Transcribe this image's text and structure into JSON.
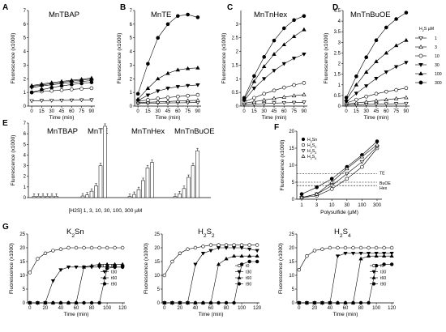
{
  "chart_data": [
    {
      "id": "A",
      "type": "line",
      "title": "MnTBAP",
      "xlabel": "Time (min)",
      "ylabel": "Fluorescence (x1000)",
      "x": [
        0,
        15,
        30,
        45,
        60,
        75,
        90
      ],
      "xticks": [
        0,
        15,
        30,
        45,
        60,
        75,
        90
      ],
      "ylim": [
        0,
        7
      ],
      "yticks": [
        0,
        1,
        2,
        3,
        4,
        5,
        6,
        7
      ],
      "series": [
        {
          "name": "1",
          "marker": "tri-down-open",
          "values": [
            0.38,
            0.4,
            0.41,
            0.42,
            0.43,
            0.44,
            0.45
          ]
        },
        {
          "name": "3",
          "marker": "tri-up-open",
          "values": [
            1.45,
            1.55,
            1.65,
            1.75,
            1.83,
            1.9,
            1.98
          ]
        },
        {
          "name": "10",
          "marker": "circle-open",
          "values": [
            1.0,
            1.07,
            1.12,
            1.17,
            1.22,
            1.27,
            1.31
          ]
        },
        {
          "name": "30",
          "marker": "tri-down",
          "values": [
            1.35,
            1.47,
            1.56,
            1.65,
            1.73,
            1.8,
            1.87
          ]
        },
        {
          "name": "100",
          "marker": "tri-up",
          "values": [
            1.5,
            1.62,
            1.72,
            1.81,
            1.89,
            1.97,
            2.05
          ]
        },
        {
          "name": "300",
          "marker": "circle",
          "values": [
            1.0,
            1.2,
            1.35,
            1.48,
            1.58,
            1.66,
            1.74
          ]
        }
      ]
    },
    {
      "id": "B",
      "type": "line",
      "title": "MnTE",
      "xlabel": "Time (min)",
      "ylabel": "Fluorescence (x1000)",
      "x": [
        0,
        15,
        30,
        45,
        60,
        75,
        90
      ],
      "xticks": [
        0,
        15,
        30,
        45,
        60,
        75,
        90
      ],
      "ylim": [
        0,
        7
      ],
      "yticks": [
        0,
        1,
        2,
        3,
        4,
        5,
        6,
        7
      ],
      "series": [
        {
          "name": "1",
          "marker": "tri-down-open",
          "values": [
            0.2,
            0.21,
            0.22,
            0.23,
            0.24,
            0.25,
            0.26
          ]
        },
        {
          "name": "3",
          "marker": "tri-up-open",
          "values": [
            0.25,
            0.28,
            0.31,
            0.34,
            0.37,
            0.4,
            0.42
          ]
        },
        {
          "name": "10",
          "marker": "circle-open",
          "values": [
            0.35,
            0.45,
            0.55,
            0.62,
            0.7,
            0.76,
            0.82
          ]
        },
        {
          "name": "30",
          "marker": "tri-down",
          "values": [
            0.4,
            0.8,
            1.1,
            1.3,
            1.42,
            1.5,
            1.55
          ]
        },
        {
          "name": "100",
          "marker": "tri-up",
          "values": [
            0.5,
            1.3,
            2.0,
            2.4,
            2.65,
            2.75,
            2.8
          ]
        },
        {
          "name": "300",
          "marker": "circle",
          "values": [
            0.9,
            3.1,
            5.0,
            6.0,
            6.6,
            6.7,
            6.5
          ]
        }
      ]
    },
    {
      "id": "C",
      "type": "line",
      "title": "MnTnHex",
      "xlabel": "Time (min)",
      "ylabel": "Fluorescence (x1000)",
      "x": [
        0,
        15,
        30,
        45,
        60,
        75,
        90
      ],
      "xticks": [
        0,
        15,
        30,
        45,
        60,
        75,
        90
      ],
      "ylim": [
        0,
        3.5
      ],
      "yticks": [
        0,
        0.5,
        1,
        1.5,
        2,
        2.5,
        3
      ],
      "series": [
        {
          "name": "1",
          "marker": "tri-down-open",
          "values": [
            0.05,
            0.07,
            0.09,
            0.11,
            0.12,
            0.13,
            0.14
          ]
        },
        {
          "name": "3",
          "marker": "tri-up-open",
          "values": [
            0.1,
            0.16,
            0.22,
            0.28,
            0.33,
            0.38,
            0.42
          ]
        },
        {
          "name": "10",
          "marker": "circle-open",
          "values": [
            0.15,
            0.3,
            0.45,
            0.57,
            0.68,
            0.77,
            0.85
          ]
        },
        {
          "name": "30",
          "marker": "tri-down",
          "values": [
            0.2,
            0.65,
            1.0,
            1.3,
            1.55,
            1.75,
            1.9
          ]
        },
        {
          "name": "100",
          "marker": "tri-up",
          "values": [
            0.25,
            0.9,
            1.45,
            1.9,
            2.25,
            2.55,
            2.8
          ]
        },
        {
          "name": "300",
          "marker": "circle",
          "values": [
            0.3,
            1.1,
            1.8,
            2.4,
            2.85,
            3.15,
            3.3
          ]
        }
      ]
    },
    {
      "id": "D",
      "type": "line",
      "title": "MnTnBuOE",
      "xlabel": "Time (min)",
      "ylabel": "Fluorescence (x1000)",
      "x": [
        0,
        15,
        30,
        45,
        60,
        75,
        90
      ],
      "xticks": [
        0,
        15,
        30,
        45,
        60,
        75,
        90
      ],
      "ylim": [
        0,
        4.5
      ],
      "yticks": [
        0,
        0.5,
        1,
        1.5,
        2,
        2.5,
        3,
        3.5,
        4,
        4.5
      ],
      "legend_title": "H2S µM",
      "series": [
        {
          "name": "1",
          "marker": "tri-down-open",
          "values": [
            0.05,
            0.06,
            0.08,
            0.09,
            0.1,
            0.11,
            0.12
          ]
        },
        {
          "name": "3",
          "marker": "tri-up-open",
          "values": [
            0.1,
            0.15,
            0.2,
            0.25,
            0.3,
            0.35,
            0.4
          ]
        },
        {
          "name": "10",
          "marker": "circle-open",
          "values": [
            0.15,
            0.3,
            0.45,
            0.58,
            0.68,
            0.76,
            0.85
          ]
        },
        {
          "name": "30",
          "marker": "tri-down",
          "values": [
            0.2,
            0.6,
            0.95,
            1.3,
            1.6,
            1.85,
            2.05
          ]
        },
        {
          "name": "100",
          "marker": "tri-up",
          "values": [
            0.3,
            1.0,
            1.6,
            2.1,
            2.5,
            2.85,
            3.1
          ]
        },
        {
          "name": "300",
          "marker": "circle",
          "values": [
            0.4,
            1.4,
            2.3,
            3.1,
            3.7,
            4.1,
            4.4
          ]
        }
      ]
    },
    {
      "id": "E",
      "type": "bar",
      "ylabel": "Fluorescence (x1000)",
      "ylim": [
        0,
        7
      ],
      "yticks": [
        0,
        1,
        2,
        3,
        4,
        5,
        6,
        7
      ],
      "xlabel": "[H2S] 1, 3, 10, 30, 100, 300 µM",
      "groups": [
        {
          "name": "MnTBAP",
          "values": [
            0.12,
            0.13,
            0.14,
            0.13,
            0.14,
            0.12
          ]
        },
        {
          "name": "MnTE",
          "values": [
            0.15,
            0.25,
            0.6,
            1.1,
            3.0,
            6.7
          ]
        },
        {
          "name": "MnTnHex",
          "values": [
            0.1,
            0.3,
            0.75,
            1.6,
            2.8,
            3.3
          ]
        },
        {
          "name": "MnTnBuOE",
          "values": [
            0.1,
            0.35,
            0.85,
            1.9,
            3.0,
            4.4
          ]
        }
      ]
    },
    {
      "id": "F",
      "type": "line",
      "ylabel": "Fluorescence (x1000)",
      "xlabel": "Polysulfide (µM)",
      "x": [
        1,
        3,
        10,
        30,
        100,
        300
      ],
      "xticks": [
        "1",
        "3",
        "10",
        "30",
        "100",
        "300"
      ],
      "ylim": [
        0,
        20
      ],
      "yticks": [
        0,
        5,
        10,
        15,
        20
      ],
      "series": [
        {
          "name": "H2Sn",
          "marker": "circle",
          "values": [
            1.5,
            3.5,
            6.0,
            9.5,
            13.0,
            17.0
          ]
        },
        {
          "name": "H2S2",
          "marker": "circle-open",
          "values": [
            0.5,
            1.0,
            3.0,
            6.0,
            9.5,
            15.0
          ]
        },
        {
          "name": "H2S3",
          "marker": "tri-down-open",
          "values": [
            0.5,
            1.5,
            4.0,
            7.5,
            11.0,
            15.5
          ]
        },
        {
          "name": "H2S4",
          "marker": "tri-up-open",
          "values": [
            0.5,
            1.5,
            5.0,
            9.0,
            12.5,
            16.0
          ]
        }
      ],
      "reference_lines": [
        {
          "label": "TE",
          "y": 7.5
        },
        {
          "label": "BuOE",
          "y": 5.0
        },
        {
          "label": "Hex",
          "y": 4.0
        }
      ]
    },
    {
      "id": "G1",
      "type": "line",
      "title": "K2Sn",
      "xlabel": "Time (min)",
      "ylabel": "Fluorescence (x1000)",
      "x": [
        0,
        10,
        20,
        30,
        40,
        50,
        60,
        70,
        80,
        90,
        100,
        110,
        120
      ],
      "xticks": [
        0,
        20,
        40,
        60,
        80,
        100,
        120
      ],
      "ylim": [
        0,
        25
      ],
      "yticks": [
        0,
        5,
        10,
        15,
        20,
        25
      ],
      "series": [
        {
          "name": "t0",
          "marker": "circle-open",
          "values": [
            11,
            16,
            18,
            19,
            19.5,
            20,
            20,
            20,
            20,
            20,
            20,
            20,
            20
          ]
        },
        {
          "name": "t30",
          "marker": "tri-down",
          "values": [
            0,
            0,
            0,
            8,
            12,
            13,
            13,
            13,
            13,
            13,
            13,
            13,
            13
          ]
        },
        {
          "name": "t60",
          "marker": "tri-up",
          "values": [
            0,
            0,
            0,
            0,
            0,
            0,
            0,
            13,
            13.5,
            14,
            14,
            14,
            14
          ]
        },
        {
          "name": "t90",
          "marker": "circle",
          "values": [
            0,
            0,
            0,
            0,
            0,
            0,
            0,
            0,
            0,
            0,
            12.5,
            13,
            13
          ]
        }
      ]
    },
    {
      "id": "G2",
      "type": "line",
      "title": "H2S2",
      "xlabel": "Time (min)",
      "ylabel": "Fluorescence (x1000)",
      "x": [
        0,
        10,
        20,
        30,
        40,
        50,
        60,
        70,
        80,
        90,
        100,
        110,
        120
      ],
      "xticks": [
        0,
        20,
        40,
        60,
        80,
        100,
        120
      ],
      "ylim": [
        0,
        25
      ],
      "yticks": [
        0,
        5,
        10,
        15,
        20,
        25
      ],
      "series": [
        {
          "name": "t0",
          "marker": "circle-open",
          "values": [
            10,
            15,
            18,
            19.5,
            20,
            20.5,
            21,
            21,
            21,
            21,
            21,
            21,
            21
          ]
        },
        {
          "name": "t30",
          "marker": "tri-down",
          "values": [
            0,
            0,
            0,
            0,
            14,
            18,
            19,
            20,
            20,
            20,
            20,
            19.5,
            19
          ]
        },
        {
          "name": "t60",
          "marker": "tri-up",
          "values": [
            0,
            0,
            0,
            0,
            0,
            0,
            0,
            14,
            16,
            17,
            17,
            17,
            17
          ]
        },
        {
          "name": "t90",
          "marker": "circle",
          "values": [
            0,
            0,
            0,
            0,
            0,
            0,
            0,
            0,
            0,
            0,
            14,
            15,
            15
          ]
        }
      ]
    },
    {
      "id": "G3",
      "type": "line",
      "title": "H2S4",
      "xlabel": "Time (min)",
      "ylabel": "Fluorescence (x1000)",
      "x": [
        0,
        10,
        20,
        30,
        40,
        50,
        60,
        70,
        80,
        90,
        100,
        110,
        120
      ],
      "xticks": [
        0,
        20,
        40,
        60,
        80,
        100,
        120
      ],
      "ylim": [
        0,
        25
      ],
      "yticks": [
        0,
        5,
        10,
        15,
        20,
        25
      ],
      "series": [
        {
          "name": "t0",
          "marker": "circle-open",
          "values": [
            12,
            17,
            19,
            19.5,
            20,
            20,
            20,
            20,
            20,
            20,
            20,
            20,
            20
          ]
        },
        {
          "name": "t30",
          "marker": "tri-down",
          "values": [
            0,
            0,
            0,
            0,
            0,
            17,
            18,
            18,
            18,
            18,
            18,
            18,
            18
          ]
        },
        {
          "name": "t60",
          "marker": "tri-up",
          "values": [
            0,
            0,
            0,
            0,
            0,
            0,
            0,
            0,
            16,
            17,
            17,
            17,
            17
          ]
        },
        {
          "name": "t90",
          "marker": "circle",
          "values": [
            0,
            0,
            0,
            0,
            0,
            0,
            0,
            0,
            0,
            0,
            13.5,
            14,
            14
          ]
        }
      ]
    }
  ]
}
